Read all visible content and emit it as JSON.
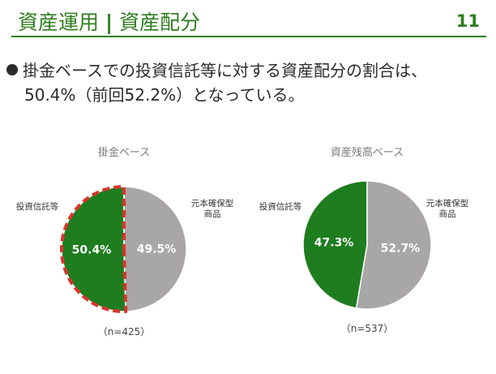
{
  "header": {
    "title_left": "資産運用",
    "title_sep": "|",
    "title_right": "資産配分",
    "page_number": "11"
  },
  "bullet": {
    "line1": "掛金ベースでの投資信託等に対する資産配分の割合は、",
    "line2": "50.4%（前回52.2%）となっている。"
  },
  "colors": {
    "green": "#1e7d1e",
    "gray": "#a8a6a6",
    "highlight": "#d9352b"
  },
  "chart_data": [
    {
      "type": "pie",
      "title": "掛金ベース",
      "n_label": "（n=425）",
      "slices": [
        {
          "label": "投資信託等",
          "value": 50.4,
          "value_label": "50.4%",
          "color": "#1e7d1e",
          "highlighted": true
        },
        {
          "label": "元本確保型\n商品",
          "value": 49.5,
          "value_label": "49.5%",
          "color": "#a8a6a6"
        }
      ]
    },
    {
      "type": "pie",
      "title": "資産残高ベース",
      "n_label": "（n=537）",
      "slices": [
        {
          "label": "投資信託等",
          "value": 47.3,
          "value_label": "47.3%",
          "color": "#1e7d1e"
        },
        {
          "label": "元本確保型\n商品",
          "value": 52.7,
          "value_label": "52.7%",
          "color": "#a8a6a6"
        }
      ]
    }
  ]
}
